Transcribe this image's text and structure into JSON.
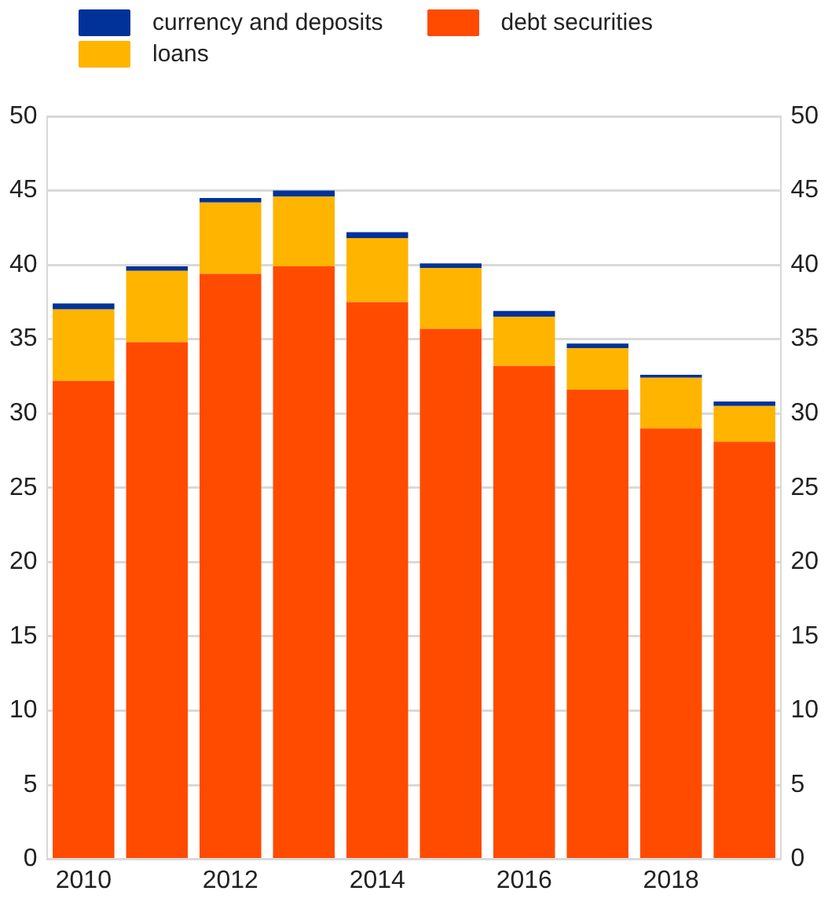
{
  "chart_data": {
    "type": "bar",
    "stacked": true,
    "categories": [
      "2010",
      null,
      "2012",
      null,
      "2014",
      null,
      "2016",
      null,
      "2018",
      null
    ],
    "series": [
      {
        "name": "debt securities",
        "color": "#ff4b00",
        "values": [
          32.2,
          34.8,
          39.4,
          39.9,
          37.5,
          35.7,
          33.2,
          31.6,
          29.0,
          28.1
        ]
      },
      {
        "name": "loans",
        "color": "#ffb400",
        "values": [
          4.8,
          4.8,
          4.8,
          4.7,
          4.3,
          4.1,
          3.3,
          2.8,
          3.4,
          2.4
        ]
      },
      {
        "name": "currency and deposits",
        "color": "#003299",
        "values": [
          0.4,
          0.3,
          0.3,
          0.4,
          0.4,
          0.3,
          0.4,
          0.3,
          0.2,
          0.3
        ]
      }
    ],
    "ylim": [
      0,
      50
    ],
    "yticks": [
      0,
      5,
      10,
      15,
      20,
      25,
      30,
      35,
      40,
      45,
      50
    ],
    "y2lim": [
      0,
      50
    ],
    "y2ticks": [
      0,
      5,
      10,
      15,
      20,
      25,
      30,
      35,
      40,
      45,
      50
    ],
    "grid": "y",
    "legend": "top"
  }
}
